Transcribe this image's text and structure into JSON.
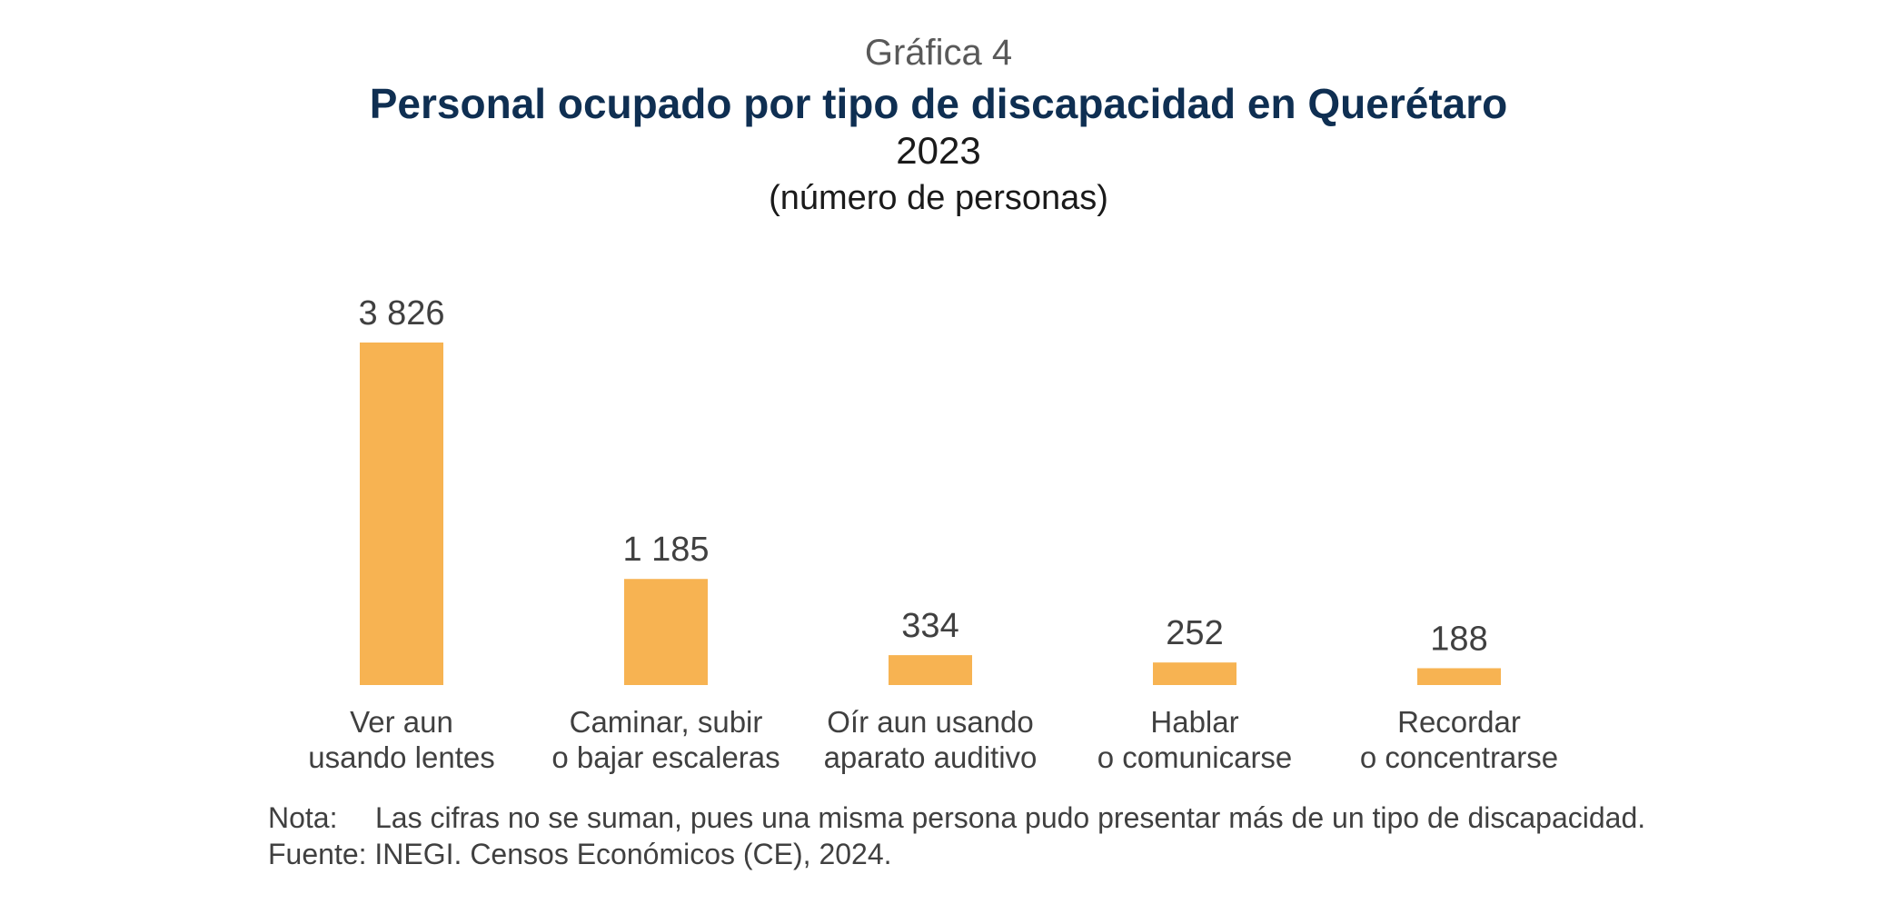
{
  "header": {
    "chart_number": "Gráfica 4",
    "title": "Personal ocupado por tipo de discapacidad en Querétaro",
    "year": "2023",
    "unit": "(número de personas)"
  },
  "chart_data": {
    "type": "bar",
    "title": "Personal ocupado por tipo de discapacidad en Querétaro",
    "subtitle": "2023",
    "unit": "(número de personas)",
    "categories": [
      [
        "Ver aun",
        "usando lentes"
      ],
      [
        "Caminar, subir",
        "o bajar escaleras"
      ],
      [
        "Oír aun usando",
        "aparato auditivo"
      ],
      [
        "Hablar",
        "o comunicarse"
      ],
      [
        "Recordar",
        "o concentrarse"
      ]
    ],
    "values": [
      3826,
      1185,
      334,
      252,
      188
    ],
    "value_labels": [
      "3 826",
      "1 185",
      "334",
      "252",
      "188"
    ],
    "ylim": [
      0,
      3826
    ],
    "grid": false,
    "colors": {
      "bar": "#f7b352",
      "title": "#0f2f52"
    }
  },
  "notes": {
    "note_label": "Nota:",
    "note_text": "Las cifras no se suman, pues una misma persona pudo presentar más de un tipo de discapacidad.",
    "source_label": "Fuente:",
    "source_text": "INEGI. Censos Económicos (CE), 2024."
  }
}
